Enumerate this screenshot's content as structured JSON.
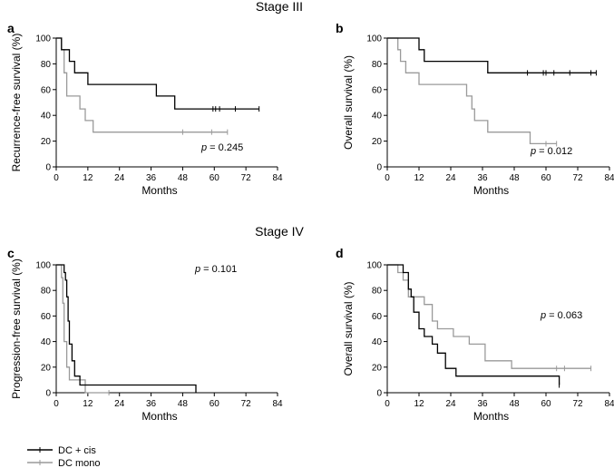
{
  "figure": {
    "stage_titles": [
      "Stage III",
      "Stage  IV"
    ],
    "legend": [
      {
        "label": "DC + cis",
        "color": "#000000"
      },
      {
        "label": "DC mono",
        "color": "#9a9a9a"
      }
    ]
  },
  "chart_data": [
    {
      "type": "line",
      "step": true,
      "panel": "a",
      "xlabel": "Months",
      "ylabel": "Recurrence-free survival (%)",
      "xlim": [
        0,
        84
      ],
      "ylim": [
        0,
        100
      ],
      "xticks": [
        0,
        12,
        24,
        36,
        48,
        60,
        72,
        84
      ],
      "yticks": [
        0,
        20,
        40,
        60,
        80,
        100
      ],
      "pvalue": "= 0.245",
      "series": [
        {
          "name": "DC + cis",
          "color": "#000000",
          "x": [
            0,
            2,
            5,
            7,
            12,
            38,
            45,
            77
          ],
          "y": [
            100,
            91,
            82,
            73,
            64,
            55,
            45,
            45
          ],
          "censor_x": [
            59.5,
            60.5,
            62,
            68,
            77
          ],
          "censor_y": 45
        },
        {
          "name": "DC mono",
          "color": "#9a9a9a",
          "x": [
            0,
            2,
            3,
            4,
            9,
            11,
            14,
            65
          ],
          "y": [
            100,
            91,
            73,
            55,
            45,
            36,
            27,
            27
          ],
          "censor_x": [
            48,
            59,
            65
          ],
          "censor_y": 27
        }
      ]
    },
    {
      "type": "line",
      "step": true,
      "panel": "b",
      "xlabel": "Months",
      "ylabel": "Overall survival (%)",
      "xlim": [
        0,
        84
      ],
      "ylim": [
        0,
        100
      ],
      "xticks": [
        0,
        12,
        24,
        36,
        48,
        60,
        72,
        84
      ],
      "yticks": [
        0,
        20,
        40,
        60,
        80,
        100
      ],
      "pvalue": "= 0.012",
      "series": [
        {
          "name": "DC + cis",
          "color": "#000000",
          "x": [
            0,
            12,
            14,
            38,
            79
          ],
          "y": [
            100,
            91,
            82,
            73,
            73
          ],
          "censor_x": [
            53,
            59,
            60,
            63,
            69,
            77,
            79
          ],
          "censor_y": 73
        },
        {
          "name": "DC mono",
          "color": "#9a9a9a",
          "x": [
            0,
            4,
            5,
            7,
            12,
            30,
            32,
            33,
            38,
            54,
            64
          ],
          "y": [
            100,
            91,
            82,
            73,
            64,
            55,
            45,
            36,
            27,
            18,
            18
          ],
          "censor_x": [
            60,
            64
          ],
          "censor_y": 18
        }
      ]
    },
    {
      "type": "line",
      "step": true,
      "panel": "c",
      "xlabel": "Months",
      "ylabel": "Progression-free survival (%)",
      "xlim": [
        0,
        84
      ],
      "ylim": [
        0,
        100
      ],
      "xticks": [
        0,
        12,
        24,
        36,
        48,
        60,
        72,
        84
      ],
      "yticks": [
        0,
        20,
        40,
        60,
        80,
        100
      ],
      "pvalue": "= 0.101",
      "series": [
        {
          "name": "DC + cis",
          "color": "#000000",
          "x": [
            0,
            3,
            3.5,
            4,
            4.5,
            5,
            6,
            7,
            9,
            53
          ],
          "y": [
            100,
            94,
            88,
            75,
            56,
            38,
            25,
            13,
            6,
            0
          ],
          "censor_x": [],
          "censor_y": 0
        },
        {
          "name": "DC mono",
          "color": "#9a9a9a",
          "x": [
            0,
            2,
            2.5,
            3,
            4,
            5,
            11,
            20
          ],
          "y": [
            100,
            90,
            70,
            40,
            20,
            10,
            0,
            0
          ],
          "censor_x": [
            20
          ],
          "censor_y": 0
        }
      ]
    },
    {
      "type": "line",
      "step": true,
      "panel": "d",
      "xlabel": "Months",
      "ylabel": "Overall survival (%)",
      "xlim": [
        0,
        84
      ],
      "ylim": [
        0,
        100
      ],
      "xticks": [
        0,
        12,
        24,
        36,
        48,
        60,
        72,
        84
      ],
      "yticks": [
        0,
        20,
        40,
        60,
        80,
        100
      ],
      "pvalue": "= 0.063",
      "series": [
        {
          "name": "DC + cis",
          "color": "#000000",
          "x": [
            0,
            6,
            8,
            9,
            10,
            12,
            14,
            17,
            19,
            22,
            26,
            65
          ],
          "y": [
            100,
            94,
            81,
            75,
            63,
            50,
            44,
            38,
            31,
            19,
            13,
            6
          ],
          "censor_x": [
            65
          ],
          "censor_y": 6
        },
        {
          "name": "DC mono",
          "color": "#9a9a9a",
          "x": [
            0,
            4,
            6,
            8,
            14,
            17,
            19,
            25,
            31,
            37,
            47,
            77
          ],
          "y": [
            100,
            94,
            88,
            75,
            69,
            56,
            50,
            44,
            38,
            25,
            19,
            19
          ],
          "censor_x": [
            64,
            67,
            77
          ],
          "censor_y": 19
        }
      ]
    }
  ]
}
